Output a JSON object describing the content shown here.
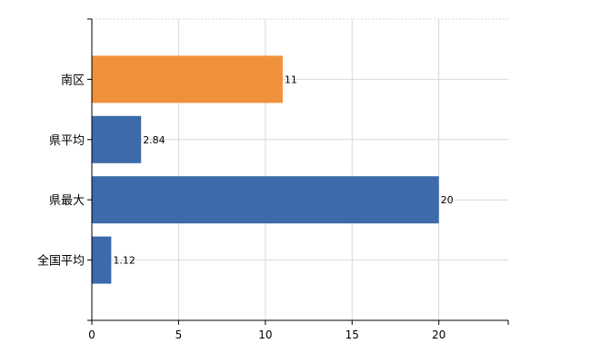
{
  "chart_data": {
    "type": "bar",
    "orientation": "horizontal",
    "categories": [
      "南区",
      "県平均",
      "県最大",
      "全国平均"
    ],
    "values": [
      11,
      2.84,
      20,
      1.12
    ],
    "data_labels": [
      "11",
      "2.84",
      "20",
      "1.12"
    ],
    "highlight_category": "南区",
    "colors": {
      "highlight": "#f0903a",
      "default": "#3c6aaa"
    },
    "xlim": [
      0,
      24
    ],
    "x_ticks": [
      0,
      5,
      10,
      15,
      20
    ],
    "x_tick_labels": [
      "0",
      "5",
      "10",
      "15",
      "20"
    ],
    "grid": true,
    "title": "",
    "xlabel": "",
    "ylabel": ""
  }
}
